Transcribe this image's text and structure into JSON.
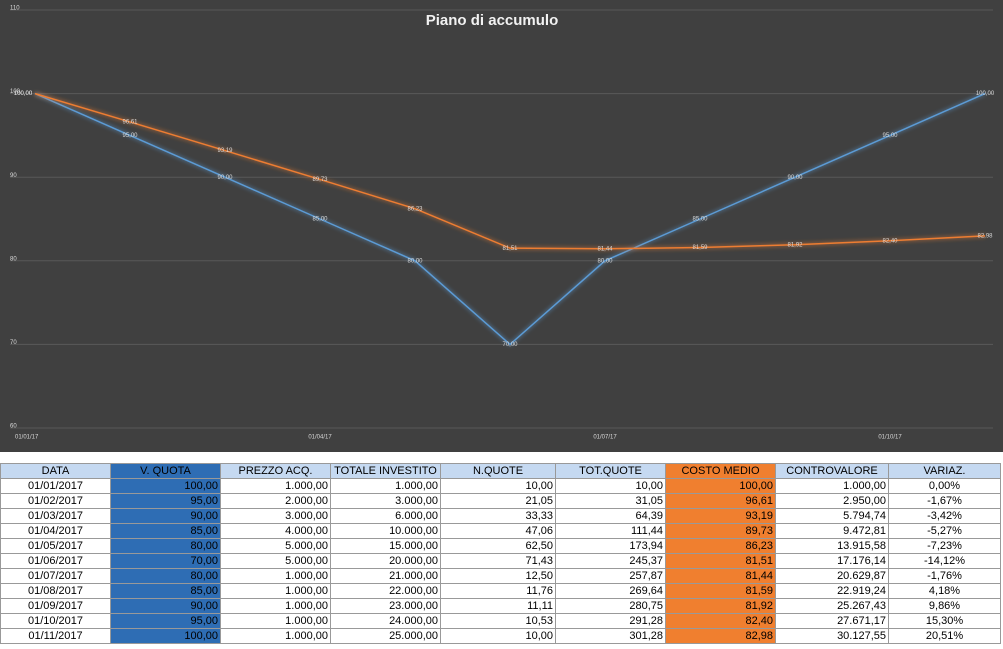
{
  "chart_data": {
    "type": "line",
    "title": "Piano di accumulo",
    "categories": [
      "01/01/17",
      null,
      null,
      "01/04/17",
      null,
      null,
      "01/07/17",
      null,
      null,
      "01/10/17",
      null
    ],
    "series": [
      {
        "color": "#5b9bd5",
        "values": [
          100,
          95,
          90,
          85,
          80,
          70,
          80,
          85,
          90,
          95,
          100
        ],
        "value_labels": [
          "100,00",
          "95,00",
          "90,00",
          "85,00",
          "80,00",
          "70,00",
          "80,00",
          "85,00",
          "90,00",
          "95,00",
          "100,00"
        ]
      },
      {
        "color": "#ed7d31",
        "values": [
          100,
          96.61,
          93.19,
          89.73,
          86.23,
          81.51,
          81.44,
          81.59,
          81.92,
          82.4,
          82.98
        ],
        "value_labels": [
          "100,00",
          "96,61",
          "93,19",
          "89,73",
          "86,23",
          "81,51",
          "81,44",
          "81,59",
          "81,92",
          "82,40",
          "82,98"
        ]
      }
    ],
    "ylim": [
      60,
      110
    ],
    "yticks": [
      60,
      70,
      80,
      90,
      100,
      110
    ],
    "grid": true
  },
  "table": {
    "header": [
      "DATA",
      "V. QUOTA",
      "PREZZO ACQ.",
      "TOTALE INVESTITO",
      "N.QUOTE",
      "TOT.QUOTE",
      "COSTO MEDIO",
      "CONTROVALORE",
      "VARIAZ."
    ],
    "rows": [
      [
        "01/01/2017",
        "100,00",
        "1.000,00",
        "1.000,00",
        "10,00",
        "10,00",
        "100,00",
        "1.000,00",
        "0,00%"
      ],
      [
        "01/02/2017",
        "95,00",
        "2.000,00",
        "3.000,00",
        "21,05",
        "31,05",
        "96,61",
        "2.950,00",
        "-1,67%"
      ],
      [
        "01/03/2017",
        "90,00",
        "3.000,00",
        "6.000,00",
        "33,33",
        "64,39",
        "93,19",
        "5.794,74",
        "-3,42%"
      ],
      [
        "01/04/2017",
        "85,00",
        "4.000,00",
        "10.000,00",
        "47,06",
        "111,44",
        "89,73",
        "9.472,81",
        "-5,27%"
      ],
      [
        "01/05/2017",
        "80,00",
        "5.000,00",
        "15.000,00",
        "62,50",
        "173,94",
        "86,23",
        "13.915,58",
        "-7,23%"
      ],
      [
        "01/06/2017",
        "70,00",
        "5.000,00",
        "20.000,00",
        "71,43",
        "245,37",
        "81,51",
        "17.176,14",
        "-14,12%"
      ],
      [
        "01/07/2017",
        "80,00",
        "1.000,00",
        "21.000,00",
        "12,50",
        "257,87",
        "81,44",
        "20.629,87",
        "-1,76%"
      ],
      [
        "01/08/2017",
        "85,00",
        "1.000,00",
        "22.000,00",
        "11,76",
        "269,64",
        "81,59",
        "22.919,24",
        "4,18%"
      ],
      [
        "01/09/2017",
        "90,00",
        "1.000,00",
        "23.000,00",
        "11,11",
        "280,75",
        "81,92",
        "25.267,43",
        "9,86%"
      ],
      [
        "01/10/2017",
        "95,00",
        "1.000,00",
        "24.000,00",
        "10,53",
        "291,28",
        "82,40",
        "27.671,17",
        "15,30%"
      ],
      [
        "01/11/2017",
        "100,00",
        "1.000,00",
        "25.000,00",
        "10,00",
        "301,28",
        "82,98",
        "30.127,55",
        "20,51%"
      ]
    ]
  }
}
